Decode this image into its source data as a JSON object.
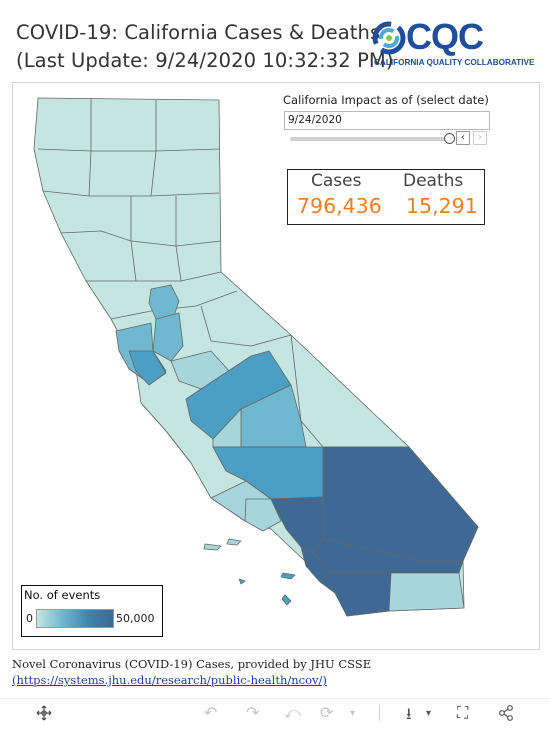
{
  "header": {
    "title_line1": "COVID-19: California Cases & Deaths",
    "title_line2": "(Last Update: 9/24/2020 10:32:32 PM)"
  },
  "logo": {
    "text": "CQC",
    "subtitle": "CALIFORNIA QUALITY COLLABORATIVE",
    "colors": [
      "#1f4e9a",
      "#4fa9d6",
      "#8cc63f"
    ]
  },
  "filter": {
    "label": "California Impact as of (select date)",
    "date_value": "9/24/2020",
    "prev_icon": "‹",
    "next_icon": "›"
  },
  "kpi": {
    "cases_label": "Cases",
    "cases_value": "796,436",
    "deaths_label": "Deaths",
    "deaths_value": "15,291",
    "value_color": "#f07f22"
  },
  "legend": {
    "title": "No. of events",
    "min": "0",
    "max": "50,000"
  },
  "map": {
    "color_scale": [
      "#c5e6e0",
      "#a6d6dc",
      "#6fb8cf",
      "#4b9ec4",
      "#3d6994"
    ]
  },
  "source": {
    "line1": "Novel Coronavirus (COVID-19) Cases, provided by JHU CSSE",
    "link": "(https://systems.jhu.edu/research/public-health/ncov/)"
  },
  "toolbar": {
    "icons": [
      "move-icon",
      "undo-icon",
      "redo-icon",
      "revert-icon",
      "refresh-icon",
      "download-icon",
      "fullscreen-icon",
      "share-icon"
    ]
  }
}
